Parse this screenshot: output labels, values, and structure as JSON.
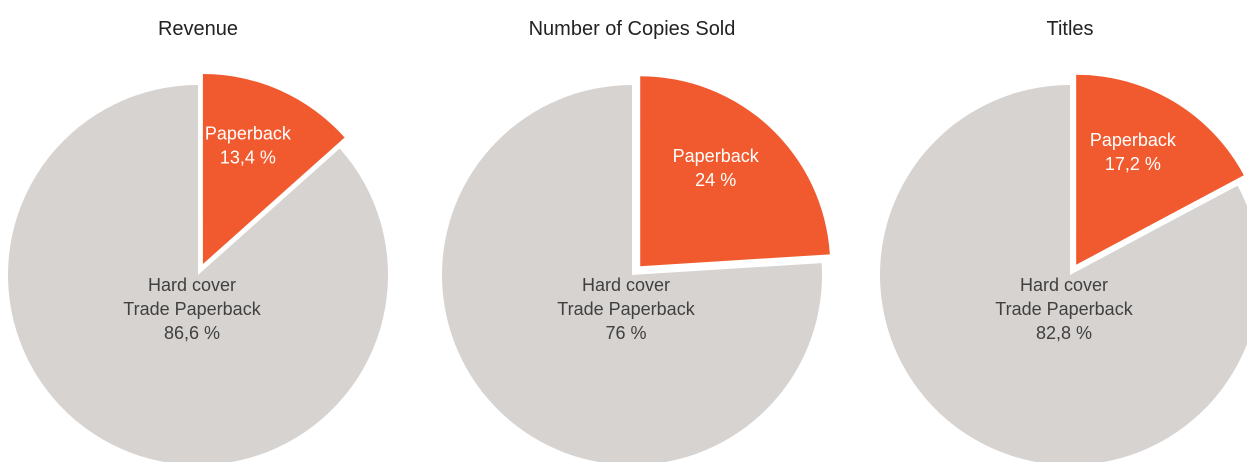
{
  "colors": {
    "hard_cover": "#d6d3d1",
    "paperback": "#f15a2e",
    "title_text": "#222222",
    "label_on_grey": "#404040",
    "label_on_orange": "#ffffff"
  },
  "chart_data": [
    {
      "type": "pie",
      "title": "Revenue",
      "slices": [
        {
          "label": "Paperback",
          "value": 13.4,
          "value_label": "13,4 %",
          "exploded": true
        },
        {
          "label_lines": [
            "Hard cover",
            "Trade Paperback"
          ],
          "value": 86.6,
          "value_label": "86,6 %",
          "exploded": false
        }
      ]
    },
    {
      "type": "pie",
      "title": "Number of Copies Sold",
      "slices": [
        {
          "label": "Paperback",
          "value": 24,
          "value_label": "24 %",
          "exploded": true
        },
        {
          "label_lines": [
            "Hard cover",
            "Trade Paperback"
          ],
          "value": 76,
          "value_label": "76 %",
          "exploded": false
        }
      ]
    },
    {
      "type": "pie",
      "title": "Titles",
      "slices": [
        {
          "label": "Paperback",
          "value": 17.2,
          "value_label": "17,2 %",
          "exploded": true
        },
        {
          "label_lines": [
            "Hard cover",
            "Trade Paperback"
          ],
          "value": 82.8,
          "value_label": "82,8 %",
          "exploded": false
        }
      ]
    }
  ]
}
